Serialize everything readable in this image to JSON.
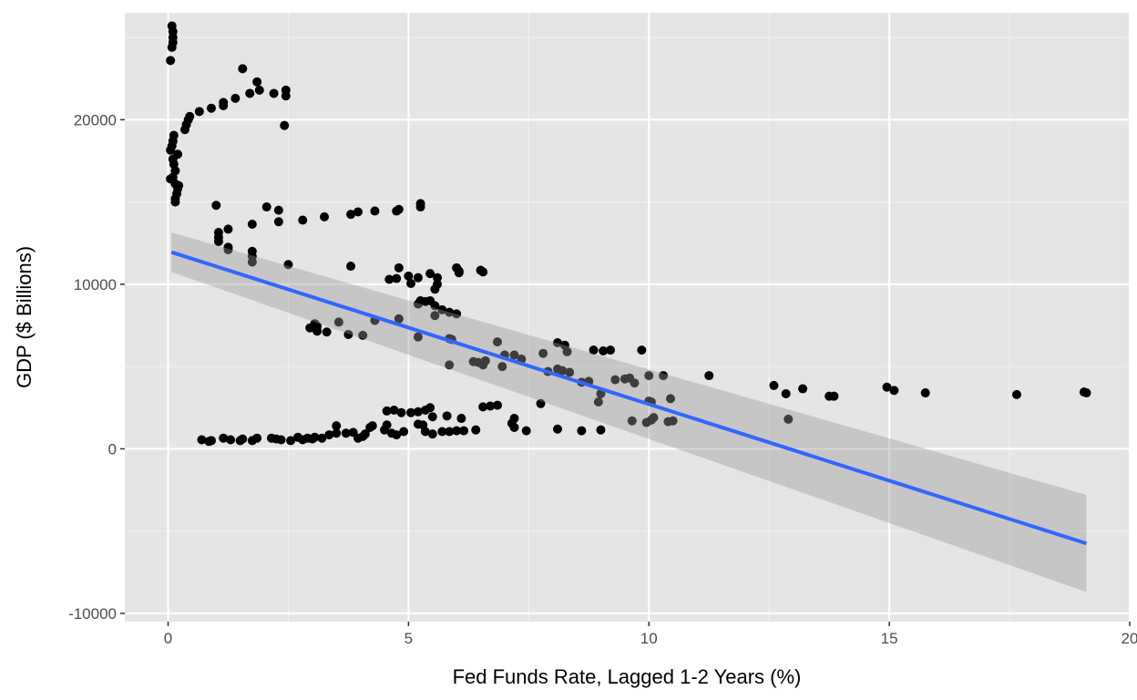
{
  "chart_data": {
    "type": "scatter",
    "title": "",
    "xlabel": "Fed Funds Rate, Lagged 1-2 Years (%)",
    "ylabel": "GDP ($ Billions)",
    "xlim": [
      -0.9,
      20.0
    ],
    "ylim": [
      -10500,
      26500
    ],
    "x_ticks": [
      0,
      5,
      10,
      15,
      20
    ],
    "y_ticks": [
      -10000,
      0,
      10000,
      20000
    ],
    "x_tick_labels": [
      "0",
      "5",
      "10",
      "15",
      "20"
    ],
    "y_tick_labels": [
      "-10000",
      "0",
      "10000",
      "20000"
    ],
    "grid": true,
    "legend": "none",
    "colors": {
      "panel": "#e5e5e5",
      "grid_major": "#ffffff",
      "points": "#000000",
      "fit_line": "#3366ff",
      "confidence_band": "#999999"
    },
    "fit": {
      "method": "linear",
      "x": [
        0.07,
        19.1
      ],
      "y": [
        11950,
        -5750
      ],
      "ci_lower": [
        10750,
        -8700
      ],
      "ci_upper": [
        13150,
        -2800
      ]
    },
    "points": [
      [
        0.08,
        25700
      ],
      [
        0.1,
        25350
      ],
      [
        0.1,
        25000
      ],
      [
        0.1,
        24700
      ],
      [
        0.08,
        24400
      ],
      [
        0.05,
        23600
      ],
      [
        0.05,
        18150
      ],
      [
        0.08,
        18400
      ],
      [
        0.1,
        18700
      ],
      [
        0.12,
        19050
      ],
      [
        0.1,
        17600
      ],
      [
        0.12,
        17300
      ],
      [
        0.15,
        16900
      ],
      [
        0.1,
        16500
      ],
      [
        0.05,
        16400
      ],
      [
        0.15,
        16100
      ],
      [
        0.2,
        15800
      ],
      [
        0.18,
        15500
      ],
      [
        0.15,
        15200
      ],
      [
        0.15,
        15000
      ],
      [
        0.2,
        17900
      ],
      [
        0.22,
        16000
      ],
      [
        0.35,
        19400
      ],
      [
        0.38,
        19700
      ],
      [
        0.42,
        20000
      ],
      [
        0.45,
        20200
      ],
      [
        0.65,
        20500
      ],
      [
        0.9,
        20700
      ],
      [
        1.15,
        20850
      ],
      [
        1.15,
        21050
      ],
      [
        1.4,
        21300
      ],
      [
        1.7,
        21600
      ],
      [
        1.55,
        23100
      ],
      [
        1.85,
        22300
      ],
      [
        1.9,
        21800
      ],
      [
        2.2,
        21600
      ],
      [
        2.45,
        21800
      ],
      [
        2.45,
        21450
      ],
      [
        2.42,
        19650
      ],
      [
        1.0,
        14800
      ],
      [
        1.05,
        13150
      ],
      [
        1.05,
        12850
      ],
      [
        1.05,
        12600
      ],
      [
        1.25,
        13350
      ],
      [
        1.25,
        12250
      ],
      [
        1.25,
        12100
      ],
      [
        1.75,
        13650
      ],
      [
        1.75,
        12000
      ],
      [
        1.75,
        11700
      ],
      [
        1.75,
        11350
      ],
      [
        2.05,
        14700
      ],
      [
        2.3,
        14500
      ],
      [
        2.3,
        13800
      ],
      [
        2.5,
        11200
      ],
      [
        2.8,
        13900
      ],
      [
        3.25,
        14100
      ],
      [
        3.8,
        14250
      ],
      [
        3.95,
        14400
      ],
      [
        4.3,
        14450
      ],
      [
        4.75,
        14450
      ],
      [
        4.8,
        14550
      ],
      [
        5.25,
        14900
      ],
      [
        5.25,
        14700
      ],
      [
        3.8,
        11100
      ],
      [
        4.6,
        10300
      ],
      [
        4.75,
        10350
      ],
      [
        4.8,
        11000
      ],
      [
        5.0,
        10500
      ],
      [
        5.05,
        10050
      ],
      [
        5.2,
        10400
      ],
      [
        5.45,
        10650
      ],
      [
        5.6,
        10400
      ],
      [
        5.6,
        10000
      ],
      [
        5.55,
        9700
      ],
      [
        5.2,
        8800
      ],
      [
        5.25,
        9000
      ],
      [
        5.35,
        8950
      ],
      [
        5.45,
        9000
      ],
      [
        5.55,
        8700
      ],
      [
        5.55,
        8100
      ],
      [
        5.7,
        8450
      ],
      [
        5.85,
        8300
      ],
      [
        6.0,
        8200
      ],
      [
        6.0,
        11000
      ],
      [
        6.05,
        10800
      ],
      [
        6.05,
        10700
      ],
      [
        6.5,
        10850
      ],
      [
        6.55,
        10750
      ],
      [
        2.95,
        7350
      ],
      [
        3.05,
        7600
      ],
      [
        3.1,
        7450
      ],
      [
        3.1,
        7150
      ],
      [
        3.3,
        7100
      ],
      [
        3.55,
        7700
      ],
      [
        3.75,
        6950
      ],
      [
        4.05,
        6900
      ],
      [
        4.3,
        7800
      ],
      [
        4.8,
        7900
      ],
      [
        5.2,
        6800
      ],
      [
        5.85,
        6700
      ],
      [
        5.9,
        6650
      ],
      [
        5.85,
        5100
      ],
      [
        6.35,
        5300
      ],
      [
        6.45,
        5250
      ],
      [
        6.55,
        5100
      ],
      [
        6.6,
        5350
      ],
      [
        6.85,
        6500
      ],
      [
        6.95,
        5000
      ],
      [
        7.0,
        5700
      ],
      [
        7.2,
        5700
      ],
      [
        7.35,
        5450
      ],
      [
        7.8,
        5800
      ],
      [
        8.1,
        6450
      ],
      [
        8.25,
        6300
      ],
      [
        8.3,
        5900
      ],
      [
        7.9,
        4700
      ],
      [
        8.1,
        4850
      ],
      [
        8.2,
        4750
      ],
      [
        8.35,
        4650
      ],
      [
        8.6,
        4050
      ],
      [
        8.75,
        4100
      ],
      [
        8.85,
        6000
      ],
      [
        9.05,
        5950
      ],
      [
        9.2,
        6000
      ],
      [
        9.3,
        4200
      ],
      [
        9.5,
        4250
      ],
      [
        9.6,
        4300
      ],
      [
        9.7,
        4000
      ],
      [
        9.85,
        6000
      ],
      [
        10.0,
        4450
      ],
      [
        10.3,
        4450
      ],
      [
        11.25,
        4450
      ],
      [
        8.95,
        2850
      ],
      [
        9.0,
        3350
      ],
      [
        10.0,
        2900
      ],
      [
        10.05,
        2850
      ],
      [
        10.45,
        3050
      ],
      [
        12.6,
        3850
      ],
      [
        12.85,
        3350
      ],
      [
        13.2,
        3650
      ],
      [
        13.75,
        3200
      ],
      [
        13.85,
        3200
      ],
      [
        14.95,
        3750
      ],
      [
        15.1,
        3550
      ],
      [
        15.75,
        3400
      ],
      [
        17.65,
        3300
      ],
      [
        19.05,
        3450
      ],
      [
        19.1,
        3400
      ],
      [
        0.7,
        550
      ],
      [
        0.85,
        450
      ],
      [
        0.9,
        500
      ],
      [
        1.15,
        650
      ],
      [
        1.3,
        550
      ],
      [
        1.5,
        500
      ],
      [
        1.55,
        600
      ],
      [
        1.75,
        500
      ],
      [
        1.85,
        650
      ],
      [
        2.15,
        650
      ],
      [
        2.25,
        600
      ],
      [
        2.35,
        550
      ],
      [
        2.55,
        500
      ],
      [
        2.7,
        700
      ],
      [
        2.8,
        550
      ],
      [
        2.9,
        650
      ],
      [
        3.0,
        600
      ],
      [
        3.05,
        700
      ],
      [
        3.2,
        650
      ],
      [
        3.35,
        850
      ],
      [
        3.5,
        950
      ],
      [
        3.5,
        1400
      ],
      [
        3.7,
        950
      ],
      [
        3.85,
        1000
      ],
      [
        3.95,
        650
      ],
      [
        4.05,
        750
      ],
      [
        4.1,
        900
      ],
      [
        4.2,
        1300
      ],
      [
        4.25,
        1400
      ],
      [
        4.5,
        1150
      ],
      [
        4.55,
        1450
      ],
      [
        4.65,
        950
      ],
      [
        4.75,
        850
      ],
      [
        4.9,
        1050
      ],
      [
        4.55,
        2300
      ],
      [
        4.7,
        2350
      ],
      [
        4.85,
        2200
      ],
      [
        5.05,
        2200
      ],
      [
        5.2,
        1500
      ],
      [
        5.3,
        1450
      ],
      [
        5.35,
        1050
      ],
      [
        5.5,
        900
      ],
      [
        5.2,
        2250
      ],
      [
        5.35,
        2350
      ],
      [
        5.45,
        2500
      ],
      [
        5.5,
        1950
      ],
      [
        5.7,
        1050
      ],
      [
        5.8,
        2000
      ],
      [
        5.85,
        1050
      ],
      [
        6.0,
        1100
      ],
      [
        6.1,
        1850
      ],
      [
        6.15,
        1100
      ],
      [
        6.4,
        1150
      ],
      [
        6.55,
        2550
      ],
      [
        6.7,
        2600
      ],
      [
        6.85,
        2650
      ],
      [
        7.15,
        1550
      ],
      [
        7.2,
        1850
      ],
      [
        7.2,
        1300
      ],
      [
        7.45,
        1100
      ],
      [
        7.75,
        2750
      ],
      [
        8.1,
        1200
      ],
      [
        8.6,
        1100
      ],
      [
        9.0,
        1150
      ],
      [
        9.65,
        1700
      ],
      [
        9.95,
        1600
      ],
      [
        10.05,
        1750
      ],
      [
        10.1,
        1900
      ],
      [
        10.4,
        1650
      ],
      [
        10.5,
        1700
      ],
      [
        12.9,
        1800
      ]
    ]
  }
}
